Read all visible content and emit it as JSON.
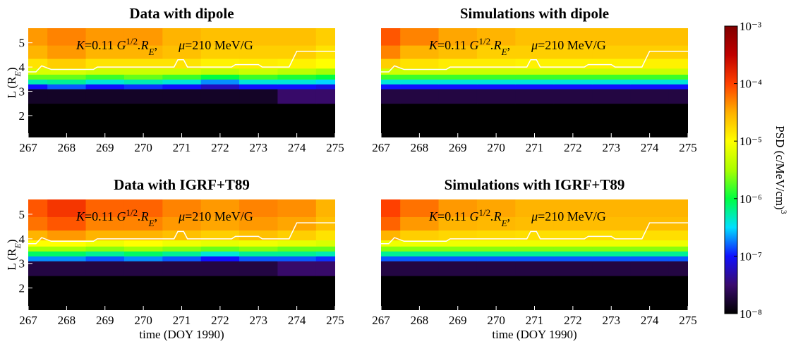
{
  "annotation": [
    "K",
    "=0.11 ",
    "G",
    "1/2",
    ".R",
    "E",
    ",",
    "μ",
    "=210 MeV/G"
  ],
  "colorbar": {
    "label": [
      "PSD (c/MeV/cm)",
      "3"
    ],
    "log": true,
    "lim": [
      1e-08,
      0.001
    ],
    "ticks": [
      {
        "value": 1e-08,
        "label": "10⁻⁸"
      },
      {
        "value": 1e-07,
        "label": "10⁻⁷"
      },
      {
        "value": 1e-06,
        "label": "10⁻⁶"
      },
      {
        "value": 1e-05,
        "label": "10⁻⁵"
      },
      {
        "value": 0.0001,
        "label": "10⁻⁴"
      },
      {
        "value": 0.001,
        "label": "10⁻³"
      }
    ],
    "colormap": [
      "#000000",
      "#3a0a6e",
      "#1010ff",
      "#00e0ff",
      "#00ff40",
      "#aaff00",
      "#ffff00",
      "#ffb000",
      "#ff4000",
      "#c00000",
      "#800000"
    ]
  },
  "chart_data": [
    {
      "type": "heatmap",
      "title": "Data with dipole",
      "ylabel": [
        "L (R",
        "E",
        ")"
      ],
      "x": [
        267,
        268,
        269,
        270,
        271,
        272,
        273,
        274,
        275
      ],
      "y": [
        2,
        3.0,
        3.2,
        3.4,
        3.6,
        3.8,
        4.1,
        4.6,
        5.2
      ],
      "z": [
        [
          1e-08,
          1e-08,
          1e-08,
          1e-08,
          1e-08,
          1e-08,
          1e-08,
          1e-08,
          1e-08
        ],
        [
          1.5e-08,
          1.5e-08,
          1.5e-08,
          1.5e-08,
          1.5e-08,
          1.5e-08,
          1.5e-08,
          3e-08,
          3e-08
        ],
        [
          1e-07,
          1.5e-07,
          1e-07,
          1.2e-07,
          1e-07,
          6e-08,
          1e-07,
          1e-07,
          8e-08
        ],
        [
          5e-07,
          6e-07,
          4e-07,
          5e-07,
          4e-07,
          2e-07,
          4e-07,
          4e-07,
          3e-07
        ],
        [
          2e-06,
          2e-06,
          1.5e-06,
          2e-06,
          1.5e-06,
          1e-06,
          1.5e-06,
          1.2e-06,
          1e-06
        ],
        [
          6e-06,
          6e-06,
          5e-06,
          5e-06,
          5e-06,
          4e-06,
          5e-06,
          4e-06,
          3e-06
        ],
        [
          1.5e-05,
          2e-05,
          1.5e-05,
          1.5e-05,
          1.5e-05,
          1.2e-05,
          1.3e-05,
          1.2e-05,
          1e-05
        ],
        [
          3e-05,
          4e-05,
          3e-05,
          3e-05,
          2.5e-05,
          2e-05,
          2e-05,
          2e-05,
          1.5e-05
        ],
        [
          4e-05,
          5e-05,
          4e-05,
          4e-05,
          3e-05,
          2.5e-05,
          2.5e-05,
          2.5e-05,
          2e-05
        ]
      ],
      "boundary": {
        "color": "#ffffff",
        "x": [
          267,
          267.2,
          267.35,
          267.6,
          268.7,
          268.8,
          270.8,
          270.9,
          271.05,
          271.15,
          272.3,
          272.4,
          273,
          273.1,
          273.8,
          274,
          275
        ],
        "y": [
          3.8,
          3.8,
          4.05,
          3.9,
          3.9,
          4.0,
          4.0,
          4.3,
          4.3,
          4.0,
          4.0,
          4.1,
          4.1,
          4.0,
          4.0,
          4.65,
          4.65
        ]
      },
      "xlim": [
        267,
        275
      ],
      "xticks": [
        267,
        268,
        269,
        270,
        271,
        272,
        273,
        274,
        275
      ],
      "ylim": [
        1.1,
        5.6
      ],
      "yticks": [
        2,
        3,
        4,
        5
      ]
    },
    {
      "type": "heatmap",
      "title": "Simulations with dipole",
      "x": [
        267,
        268,
        269,
        270,
        271,
        272,
        273,
        274,
        275
      ],
      "y": [
        2,
        3.0,
        3.2,
        3.4,
        3.6,
        3.8,
        4.1,
        4.6,
        5.2
      ],
      "z": [
        [
          1e-08,
          1e-08,
          1e-08,
          1e-08,
          1e-08,
          1e-08,
          1e-08,
          1e-08,
          1e-08
        ],
        [
          2e-08,
          2e-08,
          2e-08,
          2e-08,
          2e-08,
          2e-08,
          2e-08,
          2e-08,
          2e-08
        ],
        [
          1e-07,
          1e-07,
          1e-07,
          1e-07,
          1e-07,
          1e-07,
          1e-07,
          1e-07,
          1e-07
        ],
        [
          4e-07,
          4e-07,
          4e-07,
          4e-07,
          4e-07,
          4e-07,
          4e-07,
          4e-07,
          4e-07
        ],
        [
          1.5e-06,
          1.5e-06,
          1.5e-06,
          1.5e-06,
          1.5e-06,
          1.5e-06,
          1.5e-06,
          1.5e-06,
          1.5e-06
        ],
        [
          5e-06,
          5e-06,
          5e-06,
          5e-06,
          5e-06,
          5e-06,
          5e-06,
          5e-06,
          5e-06
        ],
        [
          2e-05,
          1.5e-05,
          1.3e-05,
          1.3e-05,
          1.2e-05,
          1.2e-05,
          1.2e-05,
          1.2e-05,
          1.2e-05
        ],
        [
          5e-05,
          3e-05,
          2.5e-05,
          2e-05,
          2e-05,
          2e-05,
          2e-05,
          2e-05,
          2e-05
        ],
        [
          8e-05,
          5e-05,
          3.5e-05,
          3e-05,
          2.5e-05,
          2.5e-05,
          2.5e-05,
          2.5e-05,
          2.5e-05
        ]
      ],
      "boundary": {
        "color": "#ffffff",
        "x": [
          267,
          267.2,
          267.35,
          267.6,
          268.7,
          268.8,
          270.8,
          270.9,
          271.05,
          271.15,
          272.3,
          272.4,
          273,
          273.1,
          273.8,
          274,
          275
        ],
        "y": [
          3.8,
          3.8,
          4.05,
          3.9,
          3.9,
          4.0,
          4.0,
          4.3,
          4.3,
          4.0,
          4.0,
          4.1,
          4.1,
          4.0,
          4.0,
          4.65,
          4.65
        ]
      },
      "xlim": [
        267,
        275
      ],
      "xticks": [
        267,
        268,
        269,
        270,
        271,
        272,
        273,
        274,
        275
      ],
      "ylim": [
        1.1,
        5.6
      ]
    },
    {
      "type": "heatmap",
      "title": "Data with IGRF+T89",
      "ylabel": [
        "L (R",
        "E",
        ")"
      ],
      "xlabel": "time (DOY 1990)",
      "x": [
        267,
        268,
        269,
        270,
        271,
        272,
        273,
        274,
        275
      ],
      "y": [
        2,
        3.0,
        3.2,
        3.4,
        3.6,
        3.8,
        4.1,
        4.6,
        5.2
      ],
      "z": [
        [
          1e-08,
          1e-08,
          1e-08,
          1e-08,
          1e-08,
          1e-08,
          1e-08,
          1e-08,
          1e-08
        ],
        [
          2e-08,
          2e-08,
          2e-08,
          2e-08,
          2e-08,
          2e-08,
          2e-08,
          3e-08,
          3e-08
        ],
        [
          2e-07,
          2e-07,
          1.5e-07,
          2e-07,
          1.5e-07,
          1e-07,
          1.5e-07,
          1.5e-07,
          1.2e-07
        ],
        [
          8e-07,
          8e-07,
          6e-07,
          8e-07,
          6e-07,
          4e-07,
          6e-07,
          6e-07,
          5e-07
        ],
        [
          3e-06,
          3e-06,
          2.5e-06,
          3e-06,
          2.5e-06,
          2e-06,
          2.5e-06,
          2e-06,
          2e-06
        ],
        [
          1e-05,
          1e-05,
          8e-06,
          1e-05,
          8e-06,
          7e-06,
          8e-06,
          7e-06,
          6e-06
        ],
        [
          3e-05,
          4e-05,
          3e-05,
          3e-05,
          2.5e-05,
          2e-05,
          2.5e-05,
          2e-05,
          1.5e-05
        ],
        [
          6e-05,
          8e-05,
          5e-05,
          5e-05,
          4e-05,
          3.5e-05,
          4e-05,
          3.5e-05,
          2.5e-05
        ],
        [
          8e-05,
          0.00012,
          7e-05,
          7e-05,
          5e-05,
          4e-05,
          5e-05,
          4.5e-05,
          3e-05
        ]
      ],
      "boundary": {
        "color": "#ffffff",
        "x": [
          267,
          267.2,
          267.35,
          267.6,
          268.7,
          268.8,
          270.8,
          270.9,
          271.05,
          271.15,
          272.3,
          272.4,
          273,
          273.1,
          273.8,
          274,
          275
        ],
        "y": [
          3.8,
          3.8,
          4.05,
          3.9,
          3.9,
          4.0,
          4.0,
          4.3,
          4.3,
          4.0,
          4.0,
          4.1,
          4.1,
          4.0,
          4.0,
          4.65,
          4.65
        ]
      },
      "xlim": [
        267,
        275
      ],
      "xticks": [
        267,
        268,
        269,
        270,
        271,
        272,
        273,
        274,
        275
      ],
      "ylim": [
        1.1,
        5.6
      ],
      "yticks": [
        2,
        3,
        4,
        5
      ]
    },
    {
      "type": "heatmap",
      "title": "Simulations with IGRF+T89",
      "xlabel": "time (DOY 1990)",
      "x": [
        267,
        268,
        269,
        270,
        271,
        272,
        273,
        274,
        275
      ],
      "y": [
        2,
        3.0,
        3.2,
        3.4,
        3.6,
        3.8,
        4.1,
        4.6,
        5.2
      ],
      "z": [
        [
          1e-08,
          1e-08,
          1e-08,
          1e-08,
          1e-08,
          1e-08,
          1e-08,
          1e-08,
          1e-08
        ],
        [
          2e-08,
          2e-08,
          2e-08,
          2e-08,
          2e-08,
          2e-08,
          2e-08,
          2e-08,
          2e-08
        ],
        [
          1.5e-07,
          1.5e-07,
          1.5e-07,
          1.5e-07,
          1.5e-07,
          1.5e-07,
          1.5e-07,
          1.5e-07,
          1.5e-07
        ],
        [
          6e-07,
          6e-07,
          6e-07,
          6e-07,
          6e-07,
          6e-07,
          6e-07,
          6e-07,
          6e-07
        ],
        [
          2.5e-06,
          2.5e-06,
          2.5e-06,
          2.5e-06,
          2.5e-06,
          2.5e-06,
          2.5e-06,
          2.5e-06,
          2.5e-06
        ],
        [
          8e-06,
          8e-06,
          8e-06,
          8e-06,
          8e-06,
          8e-06,
          8e-06,
          8e-06,
          8e-06
        ],
        [
          3e-05,
          2e-05,
          1.8e-05,
          1.7e-05,
          1.6e-05,
          1.6e-05,
          1.6e-05,
          1.6e-05,
          1.6e-05
        ],
        [
          7e-05,
          4e-05,
          3e-05,
          2.8e-05,
          2.6e-05,
          2.6e-05,
          2.6e-05,
          2.6e-05,
          2.6e-05
        ],
        [
          0.0001,
          6e-05,
          4e-05,
          3.5e-05,
          3e-05,
          3e-05,
          3e-05,
          3e-05,
          3e-05
        ]
      ],
      "boundary": {
        "color": "#ffffff",
        "x": [
          267,
          267.2,
          267.35,
          267.6,
          268.7,
          268.8,
          270.8,
          270.9,
          271.05,
          271.15,
          272.3,
          272.4,
          273,
          273.1,
          273.8,
          274,
          275
        ],
        "y": [
          3.8,
          3.8,
          4.05,
          3.9,
          3.9,
          4.0,
          4.0,
          4.3,
          4.3,
          4.0,
          4.0,
          4.1,
          4.1,
          4.0,
          4.0,
          4.65,
          4.65
        ]
      },
      "xlim": [
        267,
        275
      ],
      "xticks": [
        267,
        268,
        269,
        270,
        271,
        272,
        273,
        274,
        275
      ],
      "ylim": [
        1.1,
        5.6
      ]
    }
  ]
}
